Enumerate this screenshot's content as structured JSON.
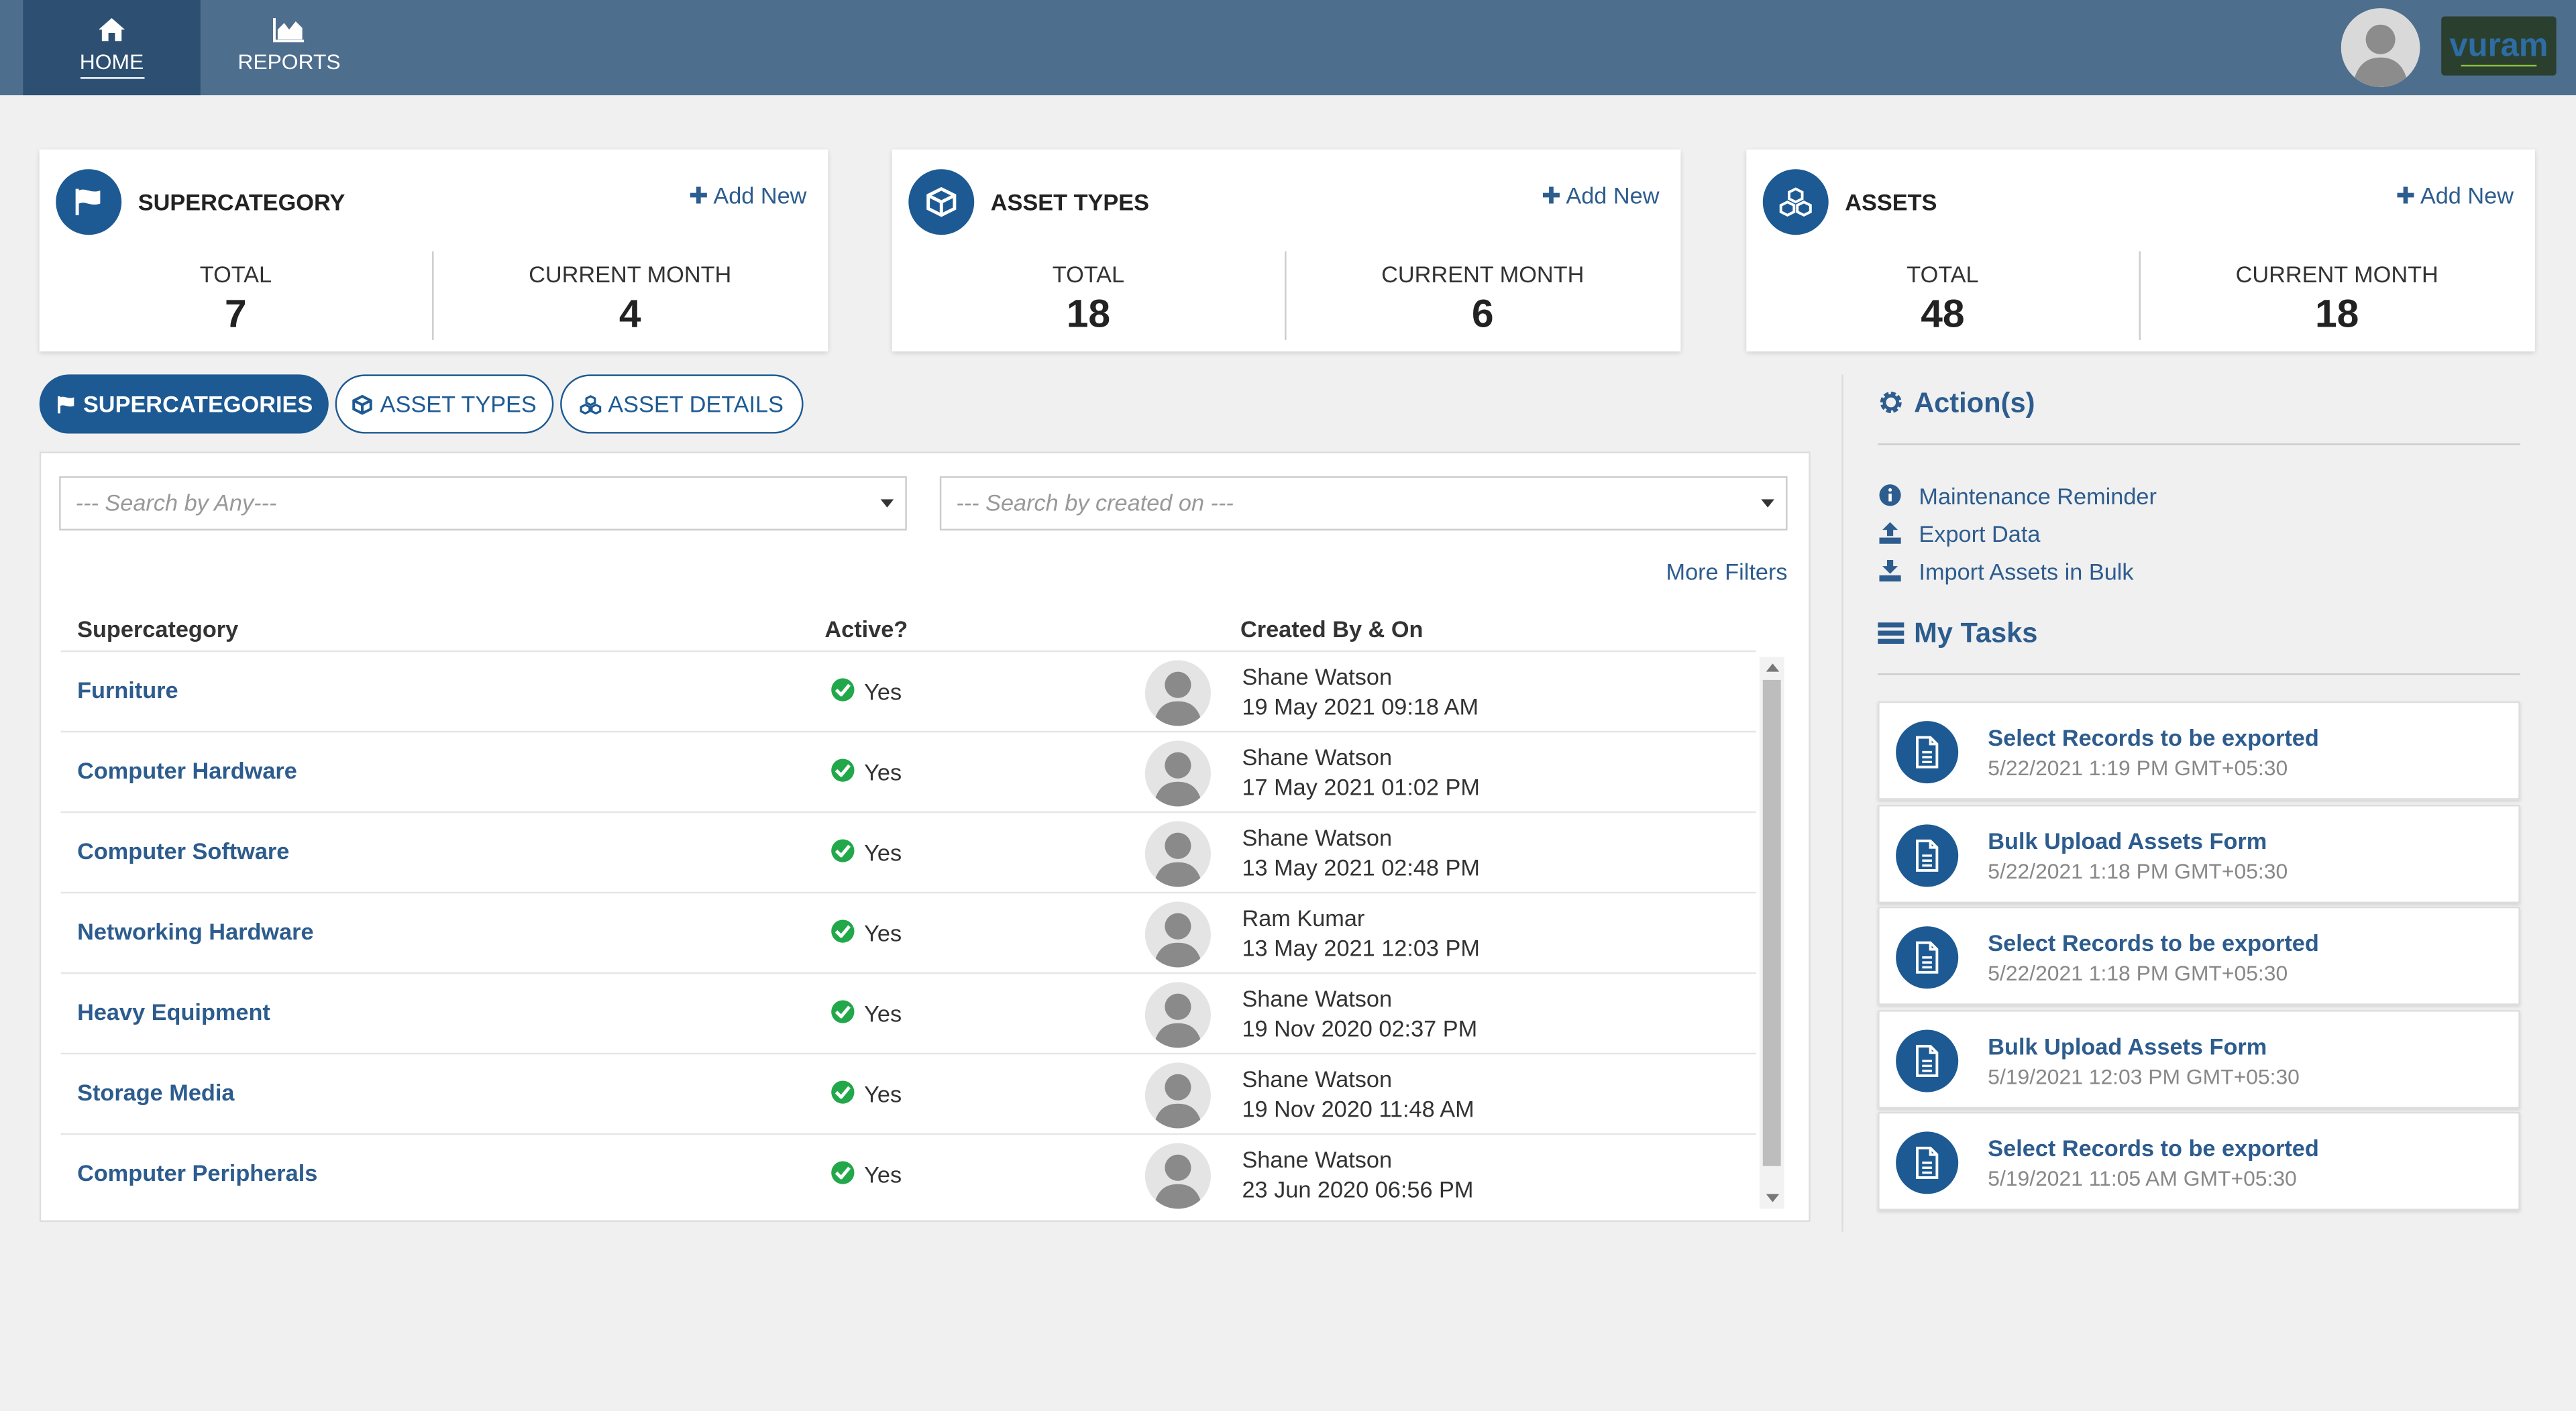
{
  "nav": {
    "home_label": "HOME",
    "reports_label": "REPORTS",
    "logo_text": "vuram"
  },
  "cards": [
    {
      "title": "SUPERCATEGORY",
      "add_new": "Add New",
      "total_label": "TOTAL",
      "total": "7",
      "month_label": "CURRENT MONTH",
      "month": "4",
      "icon": "flag-icon"
    },
    {
      "title": "ASSET TYPES",
      "add_new": "Add New",
      "total_label": "TOTAL",
      "total": "18",
      "month_label": "CURRENT MONTH",
      "month": "6",
      "icon": "cube-icon"
    },
    {
      "title": "ASSETS",
      "add_new": "Add New",
      "total_label": "TOTAL",
      "total": "48",
      "month_label": "CURRENT MONTH",
      "month": "18",
      "icon": "cubes-icon"
    }
  ],
  "tabs": [
    {
      "label": "SUPERCATEGORIES",
      "active": true
    },
    {
      "label": "ASSET TYPES",
      "active": false
    },
    {
      "label": "ASSET DETAILS",
      "active": false
    }
  ],
  "filters": {
    "search_any": "--- Search by Any---",
    "search_created": "--- Search by created on ---",
    "more_filters": "More Filters"
  },
  "table": {
    "headers": [
      "Supercategory",
      "Active?",
      "Created By & On"
    ],
    "rows": [
      {
        "name": "Furniture",
        "active": "Yes",
        "by": "Shane Watson",
        "on": "19 May 2021 09:18 AM"
      },
      {
        "name": "Computer Hardware",
        "active": "Yes",
        "by": "Shane Watson",
        "on": "17 May 2021 01:02 PM"
      },
      {
        "name": "Computer Software",
        "active": "Yes",
        "by": "Shane Watson",
        "on": "13 May 2021 02:48 PM"
      },
      {
        "name": "Networking Hardware",
        "active": "Yes",
        "by": "Ram Kumar",
        "on": "13 May 2021 12:03 PM"
      },
      {
        "name": "Heavy Equipment",
        "active": "Yes",
        "by": "Shane Watson",
        "on": "19 Nov 2020 02:37 PM"
      },
      {
        "name": "Storage Media",
        "active": "Yes",
        "by": "Shane Watson",
        "on": "19 Nov 2020 11:48 AM"
      },
      {
        "name": "Computer Peripherals",
        "active": "Yes",
        "by": "Shane Watson",
        "on": "23 Jun 2020 06:56 PM"
      }
    ]
  },
  "actions": {
    "title": "Action(s)",
    "items": [
      {
        "label": "Maintenance Reminder",
        "icon": "info-icon"
      },
      {
        "label": "Export Data",
        "icon": "upload-icon"
      },
      {
        "label": "Import Assets in Bulk",
        "icon": "download-icon"
      }
    ]
  },
  "tasks": {
    "title": "My Tasks",
    "items": [
      {
        "title": "Select Records to be exported",
        "date": "5/22/2021 1:19 PM GMT+05:30"
      },
      {
        "title": "Bulk Upload Assets Form",
        "date": "5/22/2021 1:18 PM GMT+05:30"
      },
      {
        "title": "Select Records to be exported",
        "date": "5/22/2021 1:18 PM GMT+05:30"
      },
      {
        "title": "Bulk Upload Assets Form",
        "date": "5/19/2021 12:03 PM GMT+05:30"
      },
      {
        "title": "Select Records to be exported",
        "date": "5/19/2021 11:05 AM GMT+05:30"
      }
    ]
  },
  "colors": {
    "topbar": "#4e6e8e",
    "nav_active": "#2c4f72",
    "accent": "#1d5a93",
    "link": "#2d5c8e",
    "success": "#22a84a"
  }
}
